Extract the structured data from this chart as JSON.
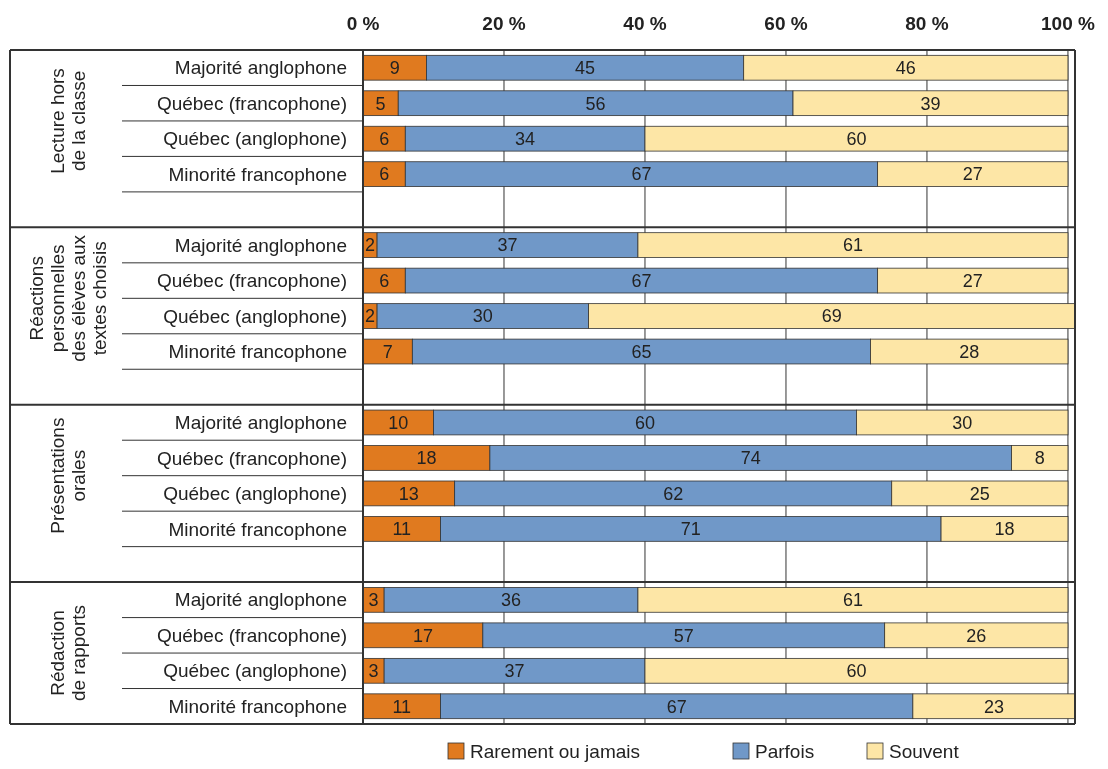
{
  "chart_data": {
    "type": "bar",
    "orientation": "horizontal",
    "stacked": true,
    "data_labels": true,
    "grid": "x",
    "legend": "bottom",
    "categories": [
      "Majorité anglophone",
      "Québec (francophone)",
      "Québec (anglophone)",
      "Minorité francophone",
      null,
      "Majorité anglophone",
      "Québec (francophone)",
      "Québec (anglophone)",
      "Minorité francophone",
      null,
      "Majorité anglophone",
      "Québec (francophone)",
      "Québec (anglophone)",
      "Minorité francophone",
      null,
      "Majorité anglophone",
      "Québec (francophone)",
      "Québec (anglophone)",
      "Minorité francophone"
    ],
    "series": [
      {
        "name": "Rarement ou jamais",
        "color": "#e07a1f",
        "values": [
          9,
          5,
          6,
          6,
          null,
          2,
          6,
          2,
          7,
          null,
          10,
          18,
          13,
          11,
          null,
          3,
          17,
          3,
          11
        ]
      },
      {
        "name": "Parfois",
        "color": "#7098c8",
        "values": [
          45,
          56,
          34,
          67,
          null,
          37,
          67,
          30,
          65,
          null,
          60,
          74,
          62,
          71,
          null,
          36,
          57,
          37,
          67
        ]
      },
      {
        "name": "Souvent",
        "color": "#fde6a6",
        "values": [
          46,
          39,
          60,
          27,
          null,
          61,
          27,
          69,
          28,
          null,
          30,
          8,
          25,
          18,
          null,
          61,
          26,
          60,
          23
        ]
      }
    ],
    "xlim": [
      0,
      101
    ],
    "xticks": [
      {
        "value": 0,
        "label": "0 %"
      },
      {
        "value": 20,
        "label": "20 %"
      },
      {
        "value": 40,
        "label": "40 %"
      },
      {
        "value": 60,
        "label": "60 %"
      },
      {
        "value": 80,
        "label": "80 %"
      },
      {
        "value": 100,
        "label": "100 %"
      }
    ],
    "annotations": [
      "Lecture hors\nde la classe",
      "Réactions\npersonnelles\ndes élèves aux\ntextes choisis",
      "Présentations\norales",
      "Rédaction\nde rapports"
    ]
  }
}
